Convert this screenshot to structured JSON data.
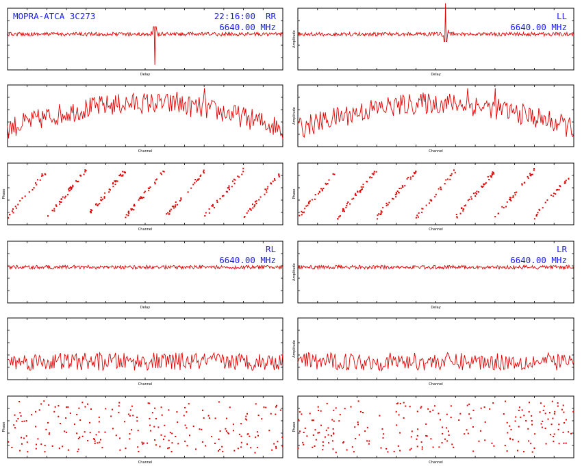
{
  "colors": {
    "trace": "#e00000",
    "annotation": "#1a1aff",
    "axes": "#000000"
  },
  "header": {
    "source": "MOPRA-ATCA 3C273",
    "time": "22:16:00"
  },
  "panels": [
    {
      "pol": "RR",
      "freq": "6640.00 MHz",
      "delay_xlabel": "Delay",
      "delay_ylabel": "",
      "amp_xlabel": "Channel",
      "amp_ylabel": "",
      "phase_xlabel": "Channel",
      "phase_ylabel": "Phase"
    },
    {
      "pol": "LL",
      "freq": "6640.00 MHz",
      "delay_xlabel": "Delay",
      "delay_ylabel": "Amplitude",
      "amp_xlabel": "Channel",
      "amp_ylabel": "Amplitude",
      "phase_xlabel": "Channel",
      "phase_ylabel": "Phase"
    },
    {
      "pol": "RL",
      "freq": "6640.00 MHz",
      "delay_xlabel": "Delay",
      "delay_ylabel": "",
      "amp_xlabel": "Channel",
      "amp_ylabel": "",
      "phase_xlabel": "Channel",
      "phase_ylabel": "Phase"
    },
    {
      "pol": "LR",
      "freq": "6640.00 MHz",
      "delay_xlabel": "Delay",
      "delay_ylabel": "Amplitude",
      "amp_xlabel": "Channel",
      "amp_ylabel": "Amplitude",
      "phase_xlabel": "Channel",
      "phase_ylabel": "Phase"
    }
  ],
  "chart_data": [
    {
      "type": "line",
      "pol": "RR",
      "xlabel": "Delay",
      "ylabel": "",
      "profile": "flat",
      "spike_at": 0.535,
      "spike_amp": 1.0,
      "noise": 0.03
    },
    {
      "type": "line",
      "pol": "RR",
      "xlabel": "Channel",
      "ylabel": "",
      "profile": "arch",
      "mean": 0.45,
      "noise": 0.22
    },
    {
      "type": "scatter",
      "pol": "RR",
      "xlabel": "Channel",
      "ylabel": "Phase",
      "pattern": "wrapped",
      "wraps": 7
    },
    {
      "type": "line",
      "pol": "LL",
      "xlabel": "Delay",
      "ylabel": "Amplitude",
      "profile": "flat",
      "spike_at": 0.535,
      "spike_amp": 1.0,
      "noise": 0.03
    },
    {
      "type": "line",
      "pol": "LL",
      "xlabel": "Channel",
      "ylabel": "Amplitude",
      "profile": "arch",
      "mean": 0.45,
      "noise": 0.22
    },
    {
      "type": "scatter",
      "pol": "LL",
      "xlabel": "Channel",
      "ylabel": "Phase",
      "pattern": "wrapped",
      "wraps": 7
    },
    {
      "type": "line",
      "pol": "RL",
      "xlabel": "Delay",
      "ylabel": "",
      "profile": "flat",
      "spike_at": null,
      "noise": 0.03
    },
    {
      "type": "line",
      "pol": "RL",
      "xlabel": "Channel",
      "ylabel": "",
      "profile": "low",
      "mean": 0.25,
      "noise": 0.18
    },
    {
      "type": "scatter",
      "pol": "RL",
      "xlabel": "Channel",
      "ylabel": "Phase",
      "pattern": "random"
    },
    {
      "type": "line",
      "pol": "LR",
      "xlabel": "Delay",
      "ylabel": "Amplitude",
      "profile": "flat",
      "spike_at": null,
      "noise": 0.03
    },
    {
      "type": "line",
      "pol": "LR",
      "xlabel": "Channel",
      "ylabel": "Amplitude",
      "profile": "low",
      "mean": 0.25,
      "noise": 0.18
    },
    {
      "type": "scatter",
      "pol": "LR",
      "xlabel": "Channel",
      "ylabel": "Phase",
      "pattern": "random"
    }
  ]
}
